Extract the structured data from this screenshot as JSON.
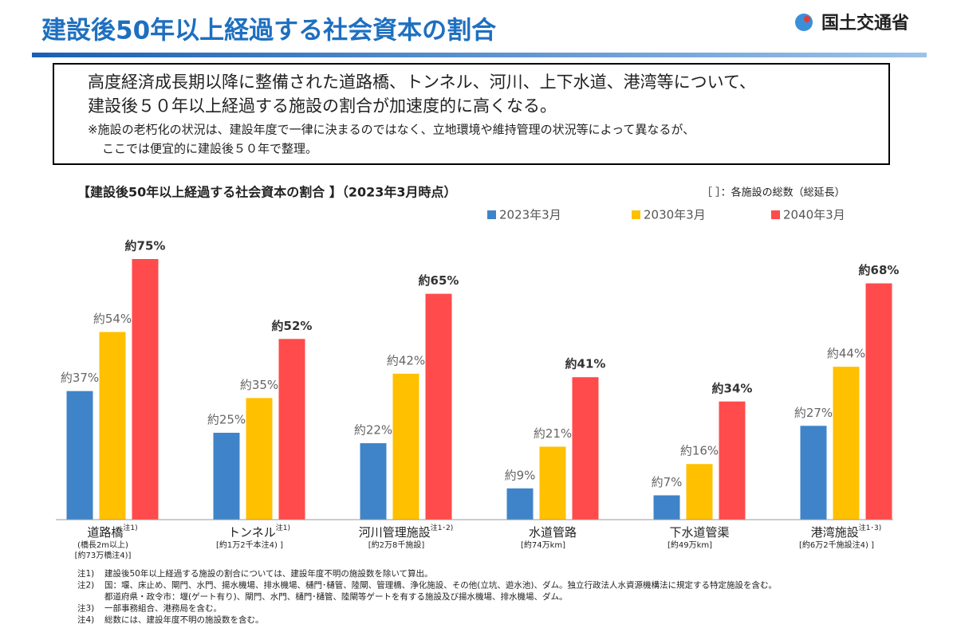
{
  "header": {
    "title": "建設後50年以上経過する社会資本の割合",
    "logo": "国土交通省"
  },
  "intro": {
    "lines": [
      "高度経済成長期以降に整備された道路橋、トンネル、河川、上下水道、港湾等について、",
      "建設後５０年以上経過する施設の割合が加速度的に高くなる。"
    ],
    "notes": [
      "※施設の老朽化の状況は、建設年度で一律に決まるのではなく、立地環境や維持管理の状況等によって異なるが、",
      "ここでは便宜的に建設後５０年で整理。"
    ]
  },
  "chart_data": {
    "type": "bar",
    "title": "【建設後50年以上経過する社会資本の割合 】（2023年3月時点）",
    "subtitle": "［ ］：各施設の総数（総延長）",
    "categories": [
      "道路橋",
      "トンネル",
      "河川管理施設",
      "水道管路",
      "下水道管渠",
      "港湾施設"
    ],
    "category_details": [
      {
        "note": "注1)",
        "lines": [
          "(橋長2m以上)",
          "[約73万橋注4)]"
        ]
      },
      {
        "note": "注1)",
        "lines": [
          "[約1万2千本注4) ]"
        ]
      },
      {
        "note": "注1･2)",
        "lines": [
          "[約2万8千施設]"
        ]
      },
      {
        "lines": [
          "[約74万km]"
        ]
      },
      {
        "lines": [
          "[約49万km]"
        ]
      },
      {
        "note": "注1･3)",
        "lines": [
          "[約6万2千施設注4) ]"
        ]
      }
    ],
    "series": [
      {
        "name": "2023年3月",
        "color": "#3f84c8",
        "values": [
          37,
          25,
          22,
          9,
          7,
          27
        ],
        "value_labels": [
          "約37%",
          "約25%",
          "約22%",
          "約9%",
          "約7%",
          "約27%"
        ]
      },
      {
        "name": "2030年3月",
        "color": "#ffc000",
        "values": [
          54,
          35,
          42,
          21,
          16,
          44
        ],
        "value_labels": [
          "約54%",
          "約35%",
          "約42%",
          "約21%",
          "約16%",
          "約44%"
        ]
      },
      {
        "name": "2040年3月",
        "color": "#ff4b4b",
        "values": [
          75,
          52,
          65,
          41,
          34,
          68
        ],
        "value_labels": [
          "約75%",
          "約52%",
          "約65%",
          "約41%",
          "約34%",
          "約68%"
        ],
        "label_bold": true
      }
    ],
    "footnotes": [
      {
        "mark": "注1)",
        "text": "建設後50年以上経過する施設の割合については、建設年度不明の施設数を除いて算出。"
      },
      {
        "mark": "注2)",
        "text": "国：堰、床止め、閘門、水門、揚水機場、排水機場、樋門･樋管、陸閘、管理橋、浄化施設、その他(立坑、遊水池)、ダム。独立行政法人水資源機構法に規定する特定施設を含む。"
      },
      {
        "text": "都道府県・政令市：堰(ゲート有り)、閘門、水門、樋門･樋管、陸閘等ゲートを有する施設及び揚水機場、排水機場、ダム。"
      },
      {
        "mark": "注3)",
        "text": "一部事務組合、港務局を含む。"
      },
      {
        "mark": "注4)",
        "text": "総数には、建設年度不明の施設数を含む。"
      }
    ]
  }
}
